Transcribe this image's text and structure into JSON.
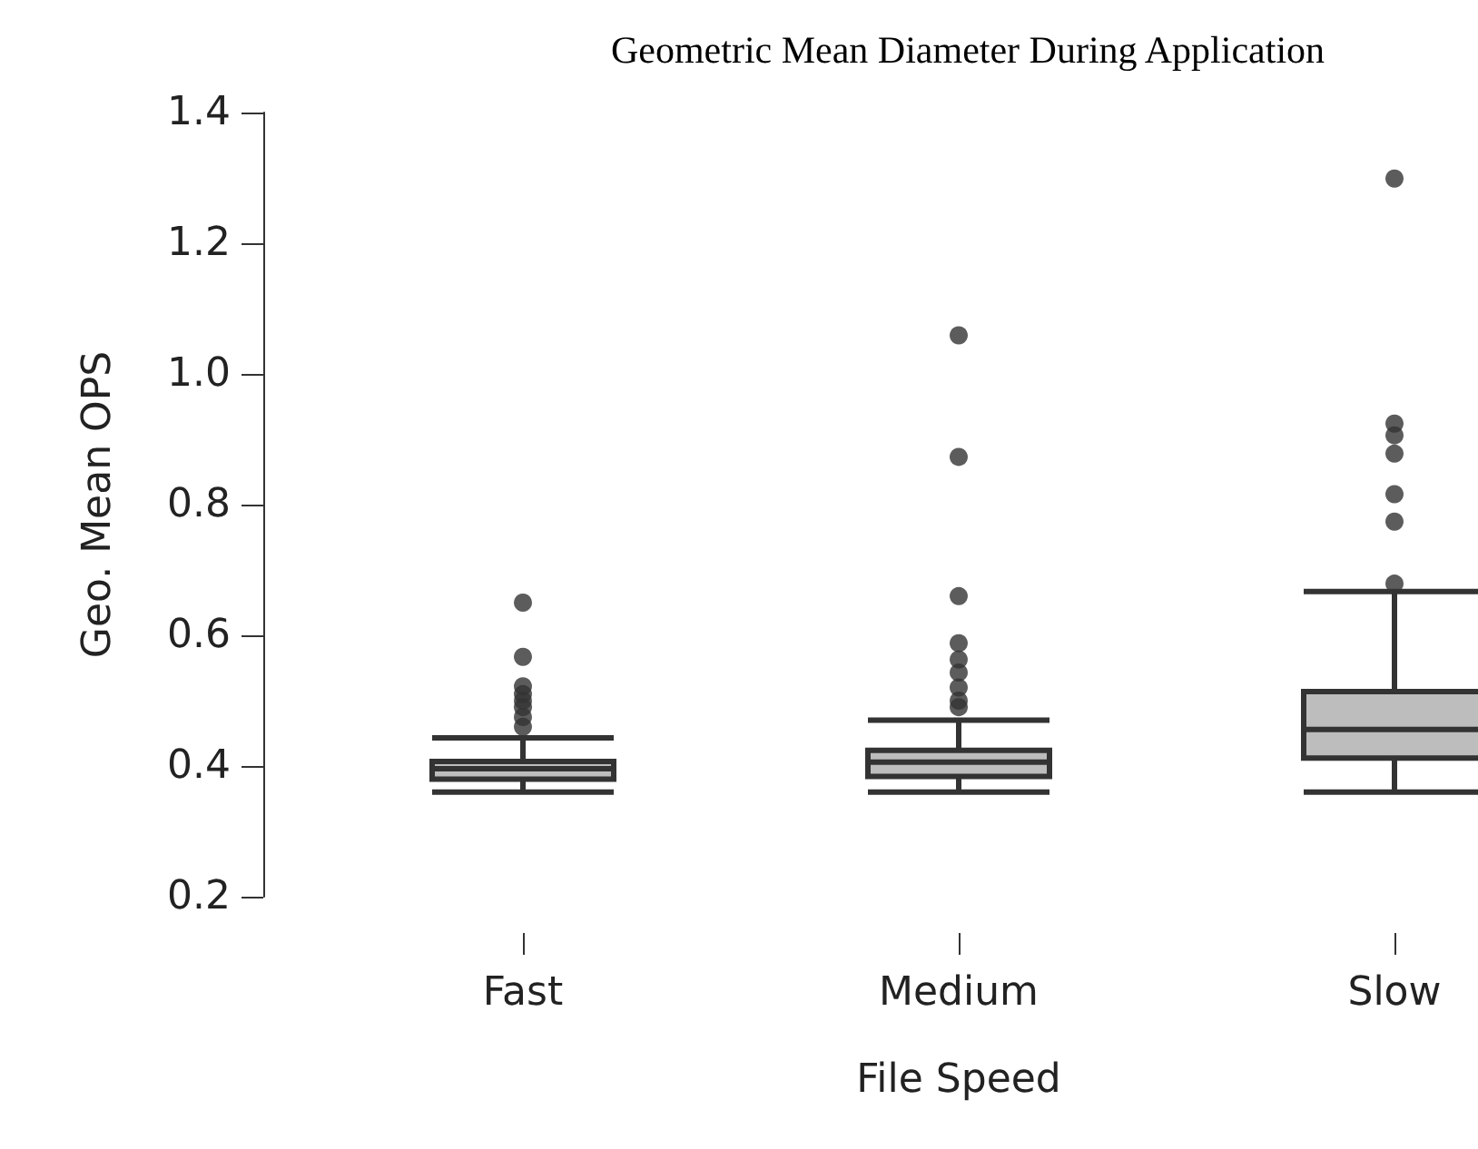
{
  "chart_data": {
    "type": "box",
    "title": "Geometric Mean Diameter During Application",
    "xlabel": "File Speed",
    "ylabel": "Geo. Mean OPS",
    "categories": [
      "Fast",
      "Medium",
      "Slow"
    ],
    "series": [
      {
        "color": "#bdbdbd",
        "boxes": [
          {
            "low": 0.36,
            "q1": 0.38,
            "median": 0.396,
            "q3": 0.407,
            "high": 0.443,
            "outliers": [
              0.65,
              0.567,
              0.522,
              0.51,
              0.5,
              0.49,
              0.475,
              0.46
            ]
          },
          {
            "low": 0.36,
            "q1": 0.384,
            "median": 0.406,
            "q3": 0.424,
            "high": 0.47,
            "outliers": [
              1.059,
              0.873,
              0.66,
              0.588,
              0.563,
              0.543,
              0.52,
              0.5,
              0.49
            ]
          },
          {
            "low": 0.36,
            "q1": 0.412,
            "median": 0.456,
            "q3": 0.514,
            "high": 0.667,
            "outliers": [
              1.299,
              0.924,
              0.906,
              0.878,
              0.816,
              0.774,
              0.679
            ]
          }
        ]
      }
    ],
    "ylim": [
      0.2,
      1.4
    ],
    "yticks": [
      {
        "value": 0.2,
        "label": "0.2"
      },
      {
        "value": 0.4,
        "label": "0.4"
      },
      {
        "value": 0.6,
        "label": "0.6"
      },
      {
        "value": 0.8,
        "label": "0.8"
      },
      {
        "value": 1,
        "label": "1.0"
      },
      {
        "value": 1.2,
        "label": "1.2"
      },
      {
        "value": 1.4,
        "label": "1.4"
      }
    ]
  }
}
